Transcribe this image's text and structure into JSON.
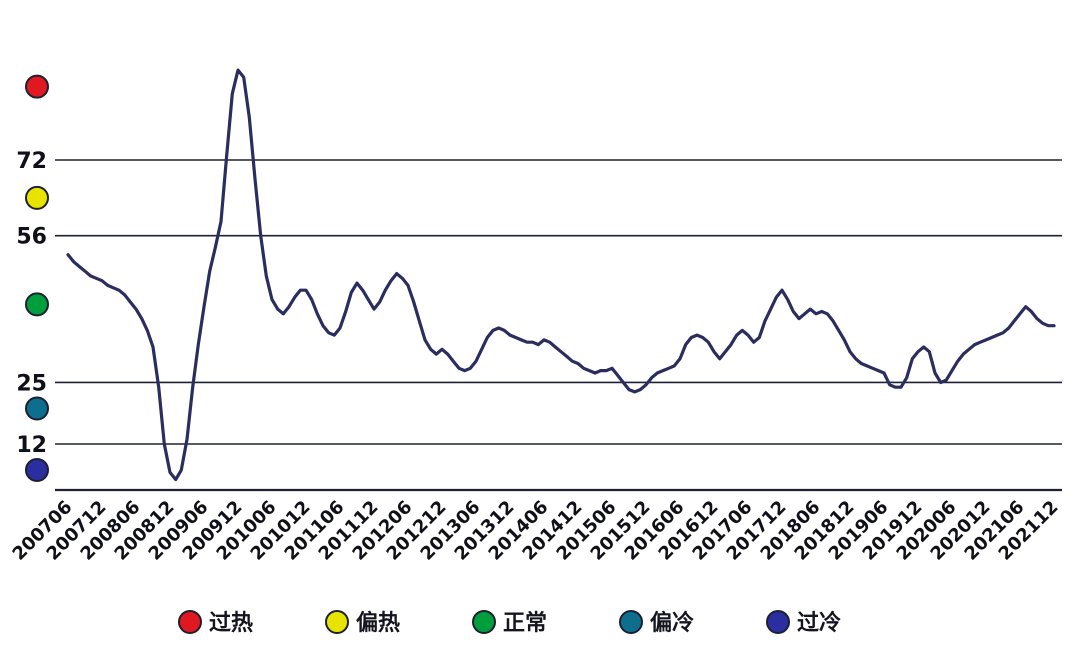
{
  "chart_data": {
    "type": "line",
    "title": "",
    "x_frequency": "monthly",
    "x_start": "2007-06",
    "x_end": "2021-12",
    "points_per_tick": 6,
    "x_tick_labels": [
      "200706",
      "200712",
      "200806",
      "200812",
      "200906",
      "200912",
      "201006",
      "201012",
      "201106",
      "201112",
      "201206",
      "201212",
      "201306",
      "201312",
      "201406",
      "201412",
      "201506",
      "201512",
      "201606",
      "201612",
      "201706",
      "201712",
      "201806",
      "201812",
      "201906",
      "201912",
      "202006",
      "202012",
      "202106",
      "202112"
    ],
    "y_ticks": [
      72,
      56,
      25,
      12
    ],
    "y_range": [
      2,
      95
    ],
    "grid": true,
    "line_color": "#2b2d5e",
    "grid_color": "#1e2233",
    "text_color": "#101018",
    "values": [
      52,
      50.5,
      49.5,
      48.5,
      47.5,
      47,
      46.5,
      45.5,
      45,
      44.5,
      43.5,
      42,
      40.5,
      38.5,
      36,
      32.5,
      24,
      12,
      6,
      4.5,
      6.5,
      13,
      24,
      33,
      41,
      48.5,
      53.5,
      59,
      73,
      86,
      91,
      89.5,
      81,
      68,
      56,
      47.5,
      42.5,
      40.5,
      39.5,
      41,
      43,
      44.5,
      44.5,
      42.5,
      39.5,
      37,
      35.5,
      35,
      36.5,
      40,
      44,
      46,
      44.5,
      42.5,
      40.5,
      42,
      44.5,
      46.5,
      48,
      47,
      45.5,
      42,
      38,
      34,
      32,
      31,
      32,
      31,
      29.5,
      28,
      27.5,
      28,
      29.5,
      32,
      34.5,
      36,
      36.5,
      36,
      35,
      34.5,
      34,
      33.5,
      33.5,
      33,
      34,
      33.5,
      32.5,
      31.5,
      30.5,
      29.5,
      29,
      28,
      27.5,
      27,
      27.5,
      27.5,
      28,
      26.5,
      25,
      23.5,
      23,
      23.5,
      24.5,
      26,
      27,
      27.5,
      28,
      28.5,
      30,
      33,
      34.5,
      35,
      34.5,
      33.5,
      31.5,
      30,
      31.5,
      33,
      35,
      36,
      35,
      33.5,
      34.5,
      38,
      40.5,
      43,
      44.5,
      42.5,
      40,
      38.5,
      39.5,
      40.5,
      39.5,
      40,
      39.5,
      38,
      36,
      34,
      31.5,
      30,
      29,
      28.5,
      28,
      27.5,
      27,
      24.5,
      24,
      24,
      26,
      30,
      31.5,
      32.5,
      31.5,
      27,
      25,
      25.5,
      27.5,
      29.5,
      31,
      32,
      33,
      33.5,
      34,
      34.5,
      35,
      35.5,
      36.5,
      38,
      39.5,
      41,
      40,
      38.5,
      37.5,
      37,
      37
    ],
    "zones": [
      {
        "key": "overheated",
        "label": "过热",
        "color": "#e01820",
        "marker_value": 87.5
      },
      {
        "key": "slightly-hot",
        "label": "偏热",
        "color": "#e8e400",
        "marker_value": 64
      },
      {
        "key": "normal",
        "label": "正常",
        "color": "#009e3c",
        "marker_value": 41.5
      },
      {
        "key": "slightly-cold",
        "label": "偏冷",
        "color": "#0e6e8e",
        "marker_value": 19.5
      },
      {
        "key": "overcooled",
        "label": "过冷",
        "color": "#2a2ea0",
        "marker_value": 6.5
      }
    ],
    "legend": {
      "position": "bottom",
      "items_from": "zones"
    }
  }
}
